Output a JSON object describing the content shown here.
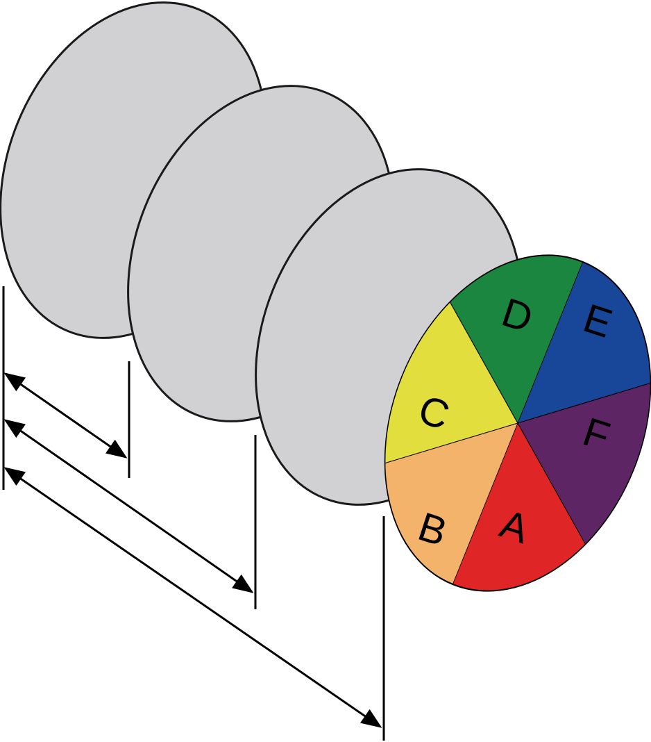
{
  "plate_fill": "#d1d0d2",
  "plates": [
    {
      "name": "plate-1"
    },
    {
      "name": "plate-2"
    },
    {
      "name": "plate-3"
    }
  ],
  "wheel": {
    "sectors": [
      {
        "label": "A",
        "color": "#e02527"
      },
      {
        "label": "B",
        "color": "#f4b36a"
      },
      {
        "label": "C",
        "color": "#e2de3e"
      },
      {
        "label": "D",
        "color": "#1a8640"
      },
      {
        "label": "E",
        "color": "#18479a"
      },
      {
        "label": "F",
        "color": "#5e2564"
      }
    ]
  }
}
